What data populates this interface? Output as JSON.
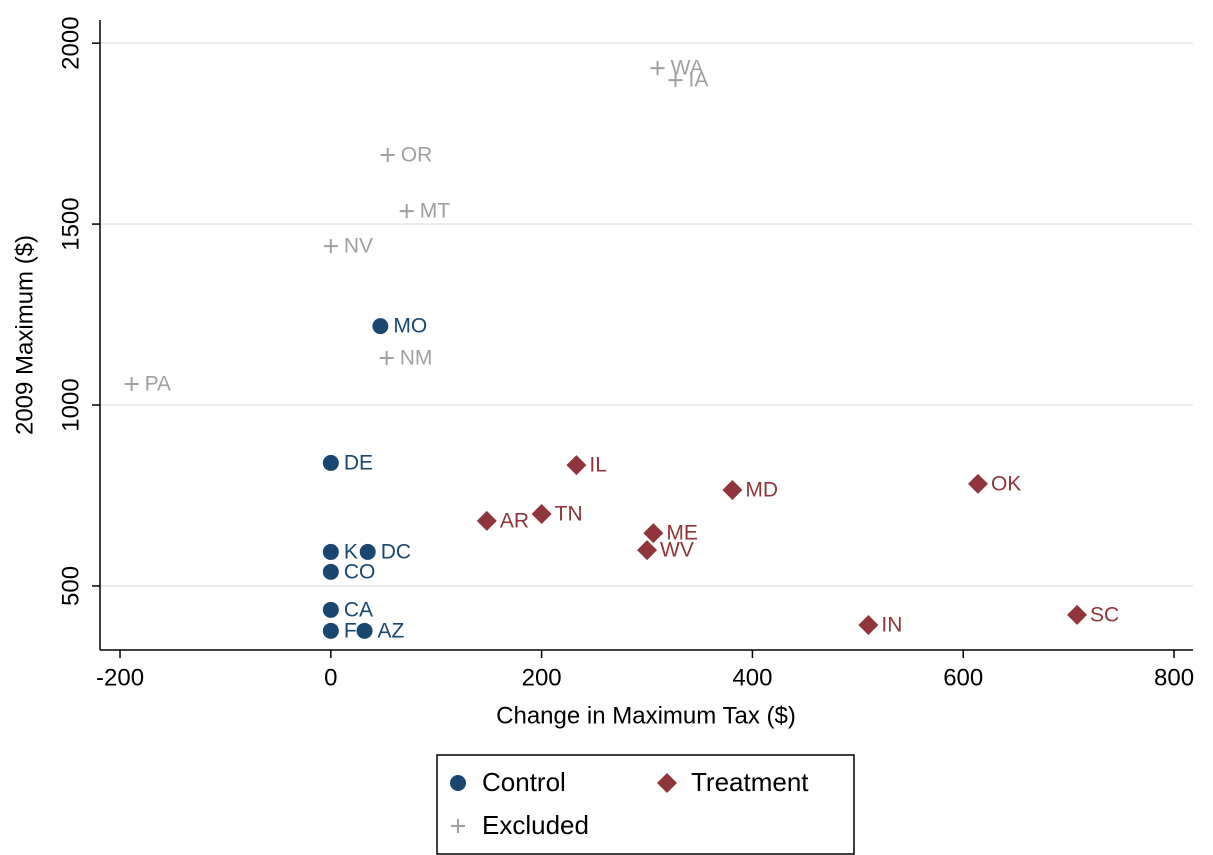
{
  "chart_data": {
    "type": "scatter",
    "xlabel": "Change in Maximum Tax ($)",
    "ylabel": "2009 Maximum ($)",
    "xlim": [
      -219,
      818
    ],
    "ylim": [
      323,
      2064
    ],
    "xticks": [
      -200,
      0,
      200,
      400,
      600,
      800
    ],
    "yticks": [
      500,
      1000,
      1500,
      2000
    ],
    "grid": true,
    "legend": "bottom",
    "series": [
      {
        "name": "Control",
        "color": "#1a476f",
        "marker": "circle",
        "x": [
          47,
          0,
          0,
          35,
          0,
          0,
          0,
          32
        ],
        "values": [
          1218,
          840,
          594,
          594,
          539,
          434,
          376,
          376
        ],
        "labels": [
          "MO",
          "DE",
          "K",
          "DC",
          "CO",
          "CA",
          "F",
          "AZ"
        ]
      },
      {
        "name": "Treatment",
        "color": "#90353b",
        "marker": "diamond",
        "x": [
          233,
          148,
          200,
          381,
          306,
          300,
          614,
          510,
          708
        ],
        "values": [
          834,
          680,
          699,
          765,
          646,
          599,
          782,
          392,
          420
        ],
        "labels": [
          "IL",
          "AR",
          "TN",
          "MD",
          "ME",
          "WV",
          "OK",
          "IN",
          "SC"
        ]
      },
      {
        "name": "Excluded",
        "color": "#a0a0a0",
        "marker": "plus",
        "x": [
          310,
          327,
          54,
          72,
          0,
          53,
          -189
        ],
        "values": [
          1931,
          1898,
          1691,
          1536,
          1439,
          1130,
          1058
        ],
        "labels": [
          "WA",
          "IA",
          "OR",
          "MT",
          "NV",
          "NM",
          "PA"
        ]
      }
    ]
  }
}
